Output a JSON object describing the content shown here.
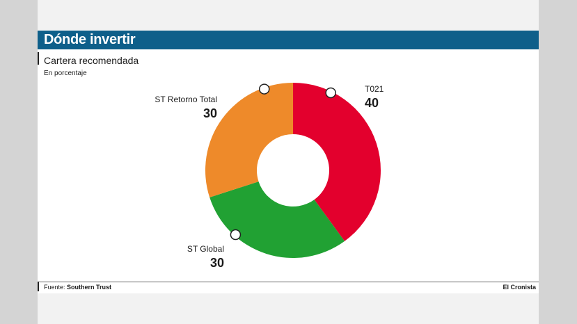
{
  "header": {
    "title": "Dónde invertir"
  },
  "chart_data": {
    "type": "pie",
    "title": "Cartera recomendada",
    "subtitle": "En porcentaje",
    "donut": true,
    "slices": [
      {
        "label": "T021",
        "value": 40,
        "color": "#e3002d"
      },
      {
        "label": "ST Global",
        "value": 30,
        "color": "#21a133"
      },
      {
        "label": "ST Retorno Total",
        "value": 30,
        "color": "#ee8a2a"
      }
    ]
  },
  "footer": {
    "source_label": "Fuente:",
    "source_value": "Southern Trust",
    "brand": "El Cronista"
  }
}
